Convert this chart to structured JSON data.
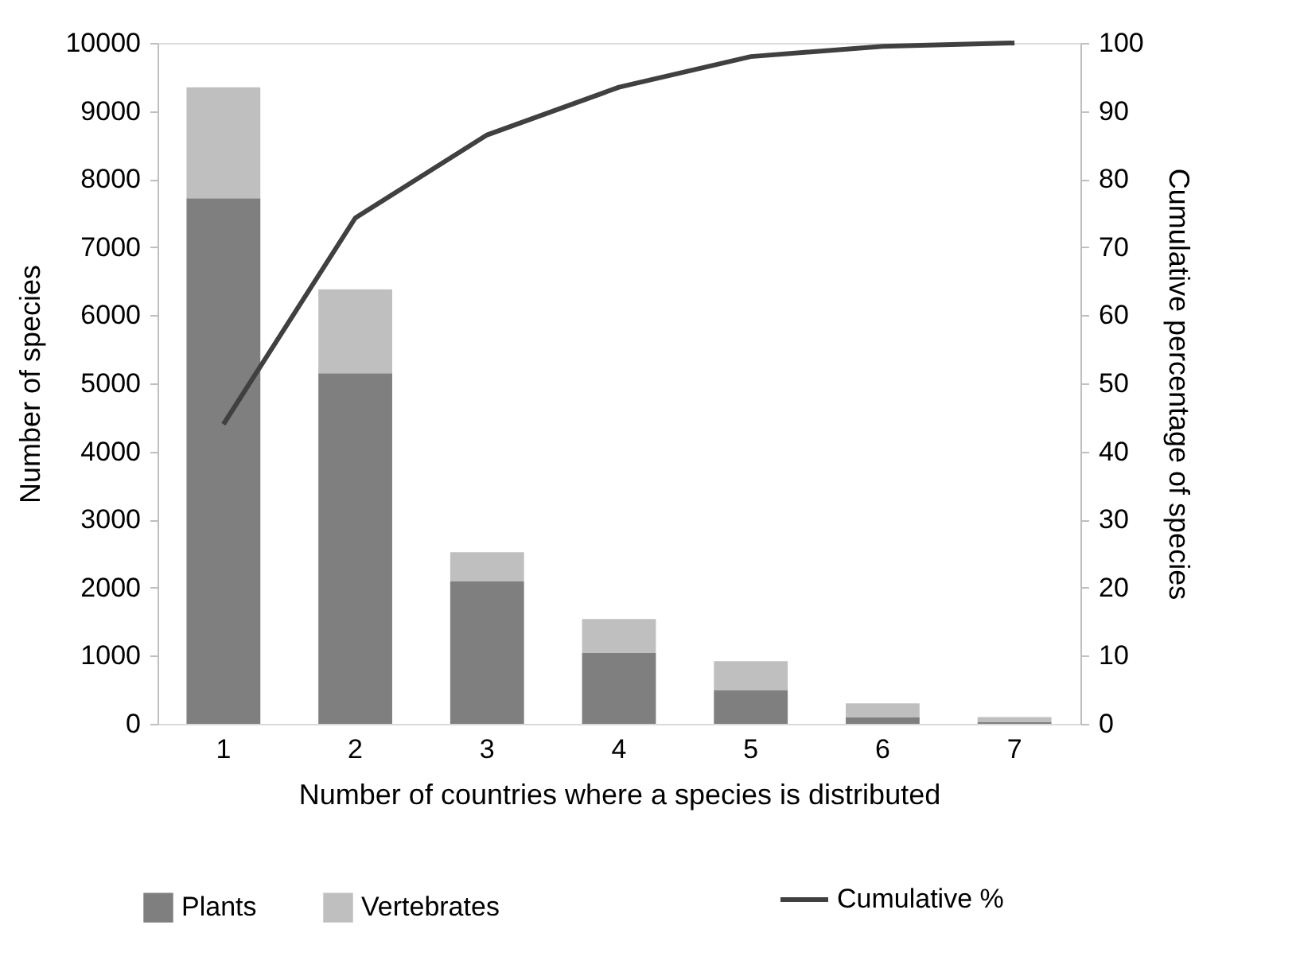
{
  "chart_data": {
    "type": "bar",
    "stacked": true,
    "xlabel": "Number  of countries where a species is distributed",
    "ylabel": "Number  of species",
    "y2label": "Cumulative percentage of species",
    "categories": [
      "1",
      "2",
      "3",
      "4",
      "5",
      "6",
      "7"
    ],
    "series": [
      {
        "name": "Plants",
        "color": "#7f7f7f",
        "values": [
          7720,
          5150,
          2090,
          1040,
          490,
          100,
          30
        ]
      },
      {
        "name": "Vertebrates",
        "color": "#bfbfbf",
        "values": [
          1630,
          1230,
          430,
          500,
          430,
          200,
          70
        ]
      },
      {
        "name": "Cumulative %",
        "type": "line",
        "axis": "y2",
        "color": "#404040",
        "values": [
          44,
          74.3,
          86.5,
          93.5,
          98,
          99.5,
          100
        ]
      }
    ],
    "ylim": [
      0,
      10000
    ],
    "yticks": [
      0,
      1000,
      2000,
      3000,
      4000,
      5000,
      6000,
      7000,
      8000,
      9000,
      10000
    ],
    "y2lim": [
      0,
      100
    ],
    "y2ticks": [
      0,
      10,
      20,
      30,
      40,
      50,
      60,
      70,
      80,
      90,
      100
    ],
    "grid": false,
    "legend": "bottom",
    "marker": "none",
    "line_style": "solid"
  }
}
